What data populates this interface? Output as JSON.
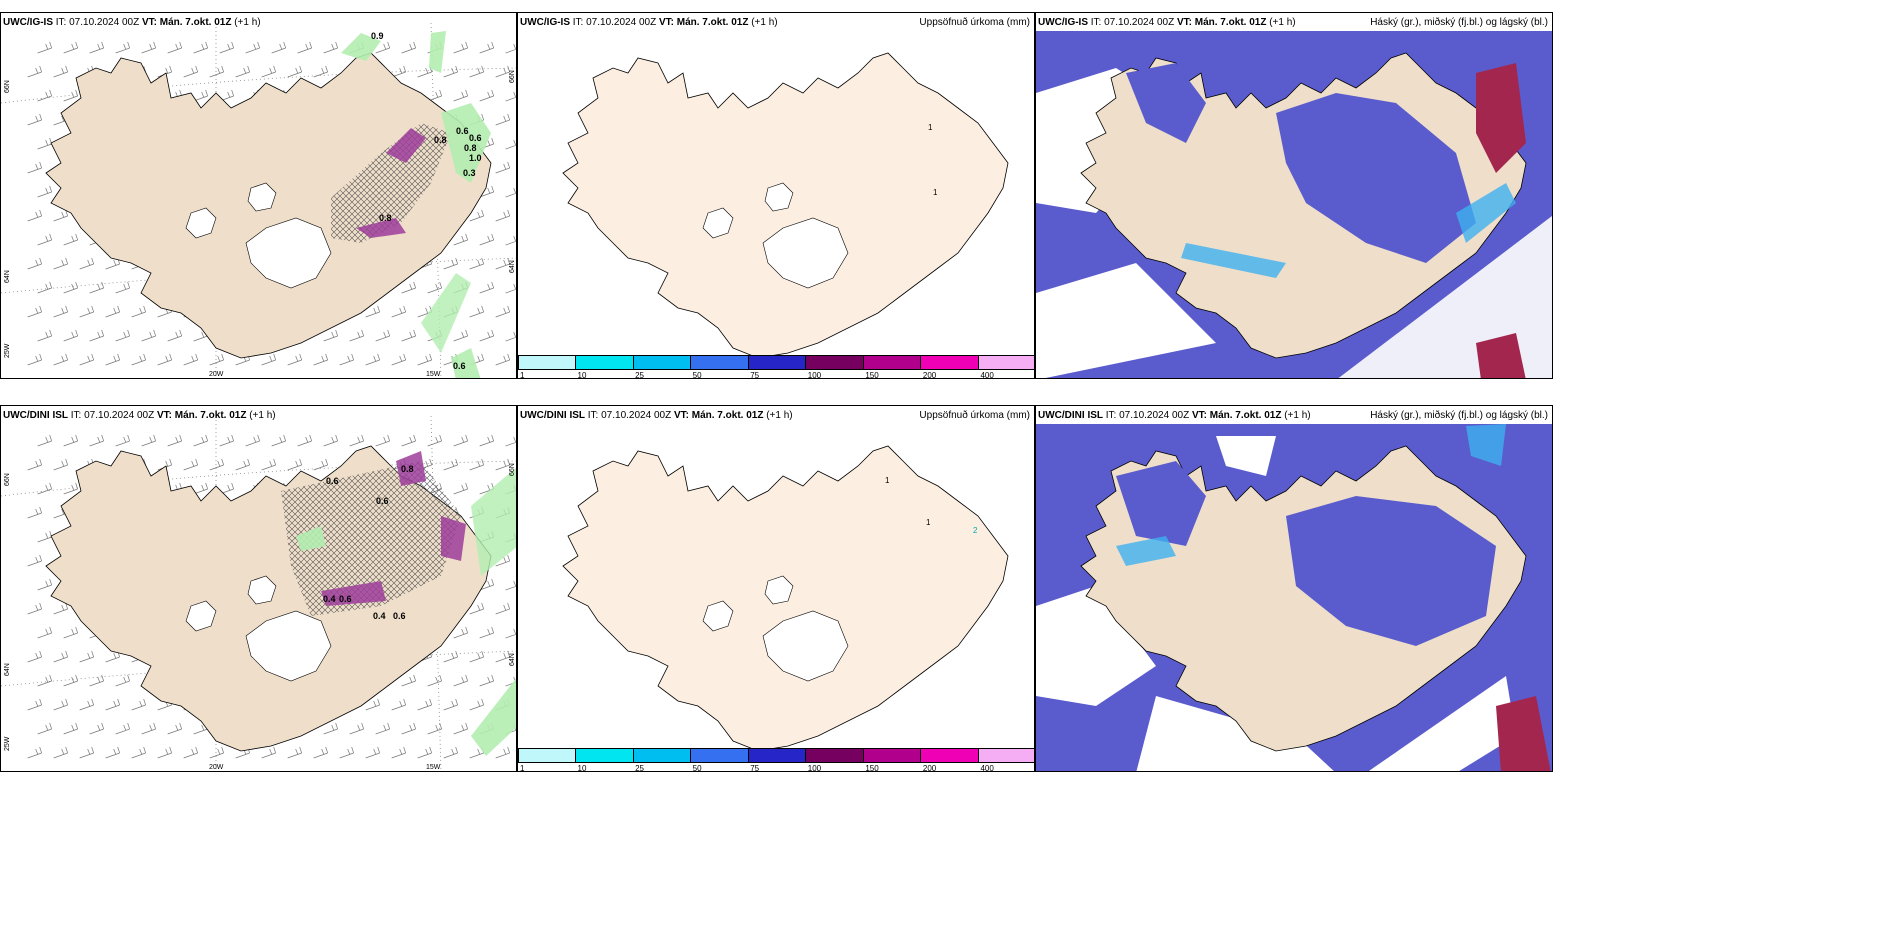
{
  "colors": {
    "land": "#efdfca",
    "land_plain": "#fcefe1",
    "green": "#b3edb0",
    "magenta": "#9d3d9b",
    "phase_blue": "#5a5ccd",
    "phase_light": "#3fb0f0",
    "phase_red": "#a3264e",
    "ocean": "#ffffff"
  },
  "colorbar": {
    "ticks": [
      "1",
      "10",
      "25",
      "50",
      "75",
      "100",
      "150",
      "200",
      "400"
    ],
    "colors": [
      "#bff7fb",
      "#00e5ef",
      "#00bff0",
      "#3570f0",
      "#2525c8",
      "#75005f",
      "#b0008c",
      "#f000b4",
      "#f5aef4"
    ]
  },
  "axes": {
    "lat_top": "66N",
    "lat_bottom": "64N",
    "lon_left": "20W",
    "lon_right": "15W",
    "corner": "25W"
  },
  "rows": [
    {
      "model": "UWC/IG-IS",
      "wind_panel": {
        "it_label": "IT:",
        "it_value": "07.10.2024 00Z",
        "vt_label": "VT:",
        "vt_value": "Mán. 7.okt. 01Z",
        "lead": "(+1 h)",
        "values": [
          "0.9",
          "0.6",
          "0.8",
          "0.6",
          "0.6",
          "0.8",
          "1.0",
          "0.8",
          "0.3"
        ]
      },
      "precip_panel": {
        "it_label": "IT:",
        "it_value": "07.10.2024 00Z",
        "vt_label": "VT:",
        "vt_value": "Mán. 7.okt. 01Z",
        "lead": "(+1 h)",
        "right_title": "Uppsöfnuð úrkoma (mm)",
        "values": [
          "1",
          "1"
        ]
      },
      "cloud_panel": {
        "it_label": "IT:",
        "it_value": "07.10.2024 00Z",
        "vt_label": "VT:",
        "vt_value": "Mán. 7.okt. 01Z",
        "lead": "(+1 h)",
        "right_title": "Háský (gr.), miðský (fj.bl.) og lágský (bl.)"
      }
    },
    {
      "model": "UWC/DINI ISL",
      "wind_panel": {
        "it_label": "IT:",
        "it_value": "07.10.2024 00Z",
        "vt_label": "VT:",
        "vt_value": "Mán. 7.okt. 01Z",
        "lead": "(+1 h)",
        "values": [
          "0.8",
          "0.4",
          "0.6",
          "0.6",
          "0.4",
          "0.6",
          "0.6"
        ]
      },
      "precip_panel": {
        "it_label": "IT:",
        "it_value": "07.10.2024 00Z",
        "vt_label": "VT:",
        "vt_value": "Mán. 7.okt. 01Z",
        "lead": "(+1 h)",
        "right_title": "Uppsöfnuð úrkoma (mm)",
        "values": [
          "1",
          "1",
          "2"
        ]
      },
      "cloud_panel": {
        "it_label": "IT:",
        "it_value": "07.10.2024 00Z",
        "vt_label": "VT:",
        "vt_value": "Mán. 7.okt. 01Z",
        "lead": "(+1 h)",
        "right_title": "Háský (gr.), miðský (fj.bl.) og lágský (bl.)"
      }
    }
  ]
}
